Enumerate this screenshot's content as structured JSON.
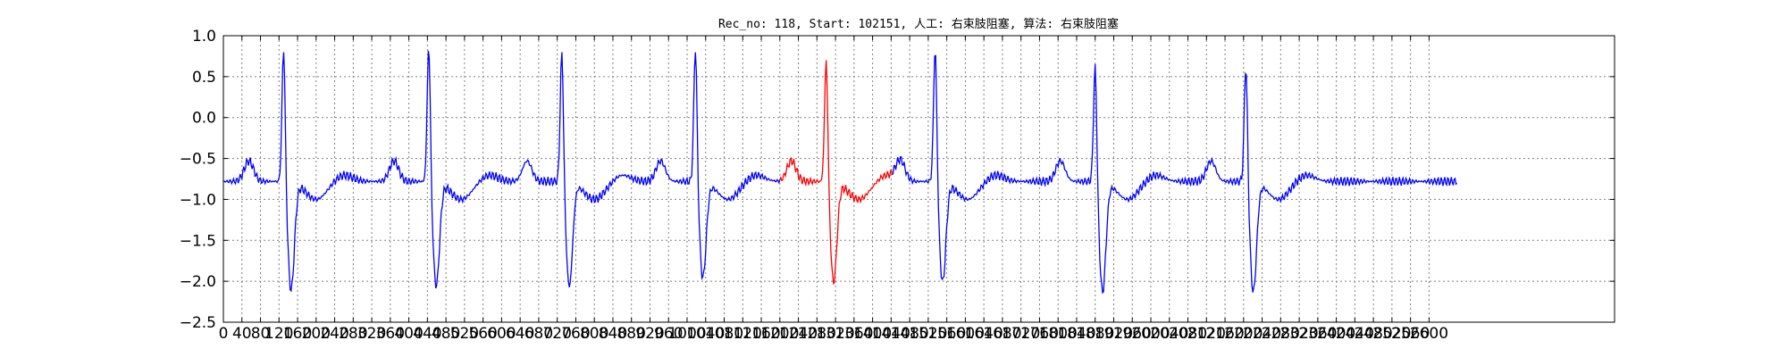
{
  "chart_data": {
    "type": "line",
    "title": "Rec_no: 118, Start: 102151, 人工: 右束肢阻塞, 算法: 右束肢阻塞",
    "xlabel": "",
    "ylabel": "",
    "xlim": [
      0,
      3000
    ],
    "ylim": [
      -2.5,
      1.0
    ],
    "grid": true,
    "x_tick_step": 40,
    "x_ticks": [
      "0",
      "40",
      "80",
      "120",
      "160",
      "200",
      "240",
      "280",
      "320",
      "360",
      "400",
      "440",
      "480",
      "520",
      "560",
      "600",
      "640",
      "680",
      "720",
      "760",
      "800",
      "840",
      "880",
      "920",
      "960",
      "1000",
      "1040",
      "1080",
      "1120",
      "1160",
      "1200",
      "1240",
      "1280",
      "1320",
      "1360",
      "1400",
      "1440",
      "1480",
      "1520",
      "1560",
      "1600",
      "1640",
      "1680",
      "1720",
      "1760",
      "1800",
      "1840",
      "1880",
      "1920",
      "1960",
      "2000",
      "2040",
      "2080",
      "2120",
      "2160",
      "2200",
      "2240",
      "2280",
      "2320",
      "2360",
      "2400",
      "2440",
      "2480",
      "2520",
      "2560",
      "2600"
    ],
    "y_ticks": [
      "1.0",
      "0.5",
      "0.0",
      "−0.5",
      "−1.0",
      "−1.5",
      "−2.0",
      "−2.5"
    ],
    "y_tick_values": [
      1.0,
      0.5,
      0.0,
      -0.5,
      -1.0,
      -1.5,
      -2.0,
      -2.5
    ],
    "colors": {
      "normal": "#0000ff",
      "highlight": "#ff0000",
      "grid": "#808080"
    },
    "highlight_range": [
      1200,
      1440
    ],
    "baseline": -0.78,
    "beats": [
      {
        "r": 130,
        "r_amp": 0.83,
        "s_amp": -2.1
      },
      {
        "r": 443,
        "r_amp": 0.85,
        "s_amp": -2.05
      },
      {
        "r": 730,
        "r_amp": 0.78,
        "s_amp": -2.05
      },
      {
        "r": 1018,
        "r_amp": 0.83,
        "s_amp": -1.95
      },
      {
        "r": 1300,
        "r_amp": 0.68,
        "s_amp": -2.0
      },
      {
        "r": 1535,
        "r_amp": 0.82,
        "s_amp": -2.0
      },
      {
        "r": 1880,
        "r_amp": 0.6,
        "s_amp": -2.12
      },
      {
        "r": 2205,
        "r_amp": 0.62,
        "s_amp": -2.12
      }
    ],
    "signal_end": 2660
  }
}
